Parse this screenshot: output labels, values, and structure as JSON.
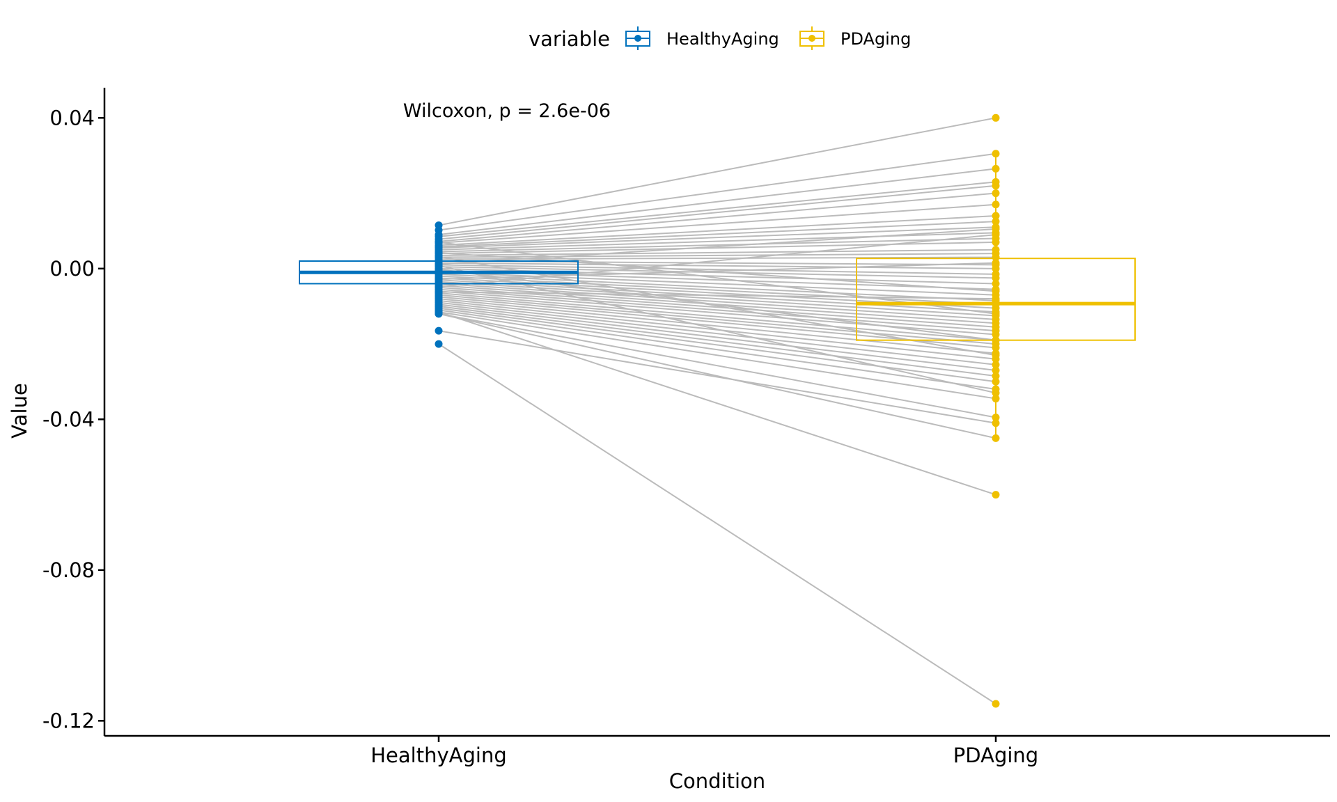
{
  "chart_data": {
    "type": "box",
    "subtype": "paired boxplot with connecting lines",
    "categories": [
      "HealthyAging",
      "PDAging"
    ],
    "xlabel": "Condition",
    "ylabel": "Value",
    "ylim": [
      -0.124,
      0.048
    ],
    "yticks": [
      0.04,
      0.0,
      -0.04,
      -0.08,
      -0.12
    ],
    "ytick_labels": [
      "0.04",
      "0.00",
      "-0.04",
      "-0.08",
      "-0.12"
    ],
    "grid": false,
    "legend": {
      "position": "top",
      "title": "variable",
      "entries": [
        "HealthyAging",
        "PDAging"
      ]
    },
    "annotation": "Wilcoxon, p = 2.6e-06",
    "colors": {
      "HealthyAging": "#0072BD",
      "PDAging": "#EFC000",
      "pair_line": "#BBBBBB",
      "axis": "#000000"
    },
    "boxes": [
      {
        "name": "HealthyAging",
        "q1": -0.004,
        "median": -0.001,
        "q3": 0.002,
        "whisker_low": -0.012,
        "whisker_high": 0.008
      },
      {
        "name": "PDAging",
        "q1": -0.019,
        "median": -0.0093,
        "q3": 0.0027,
        "whisker_low": -0.045,
        "whisker_high": 0.03
      }
    ],
    "pairs": [
      [
        0.0115,
        0.04
      ],
      [
        0.0102,
        0.0305
      ],
      [
        0.009,
        0.0265
      ],
      [
        0.0085,
        0.023
      ],
      [
        0.0078,
        0.022
      ],
      [
        0.0072,
        0.02
      ],
      [
        0.0068,
        0.017
      ],
      [
        0.0062,
        0.014
      ],
      [
        0.0058,
        0.0125
      ],
      [
        0.0055,
        0.011
      ],
      [
        0.005,
        0.0095
      ],
      [
        0.0045,
        0.008
      ],
      [
        0.004,
        0.007
      ],
      [
        0.0035,
        0.005
      ],
      [
        0.003,
        0.004
      ],
      [
        0.0025,
        0.003
      ],
      [
        0.002,
        0.001
      ],
      [
        0.0015,
        0.0
      ],
      [
        0.001,
        -0.0015
      ],
      [
        0.0005,
        -0.0025
      ],
      [
        0.0,
        -0.004
      ],
      [
        -0.0005,
        -0.0055
      ],
      [
        -0.001,
        -0.007
      ],
      [
        -0.0015,
        -0.0085
      ],
      [
        -0.002,
        -0.0095
      ],
      [
        -0.0025,
        -0.0105
      ],
      [
        -0.003,
        -0.0115
      ],
      [
        -0.0035,
        -0.0125
      ],
      [
        -0.004,
        -0.0135
      ],
      [
        -0.0045,
        -0.0145
      ],
      [
        -0.005,
        -0.0155
      ],
      [
        -0.0055,
        -0.0165
      ],
      [
        -0.006,
        -0.0175
      ],
      [
        -0.0065,
        -0.019
      ],
      [
        -0.007,
        -0.02
      ],
      [
        -0.0075,
        -0.021
      ],
      [
        -0.008,
        -0.0225
      ],
      [
        -0.0085,
        -0.024
      ],
      [
        -0.009,
        -0.0255
      ],
      [
        -0.0095,
        -0.027
      ],
      [
        -0.01,
        -0.0285
      ],
      [
        -0.0105,
        -0.03
      ],
      [
        -0.011,
        -0.032
      ],
      [
        -0.0115,
        -0.0345
      ],
      [
        -0.012,
        -0.0395
      ],
      [
        -0.0165,
        -0.041
      ],
      [
        -0.012,
        -0.045
      ],
      [
        -0.0115,
        -0.06
      ],
      [
        -0.02,
        -0.1155
      ],
      [
        0.0012,
        0.0105
      ],
      [
        -0.0028,
        0.0015
      ],
      [
        0.0042,
        -0.006
      ],
      [
        -0.0062,
        -0.008
      ],
      [
        0.007,
        -0.012
      ],
      [
        -0.0002,
        -0.019
      ],
      [
        0.0032,
        -0.023
      ],
      [
        -0.0048,
        0.009
      ],
      [
        0.0008,
        -0.033
      ]
    ]
  }
}
